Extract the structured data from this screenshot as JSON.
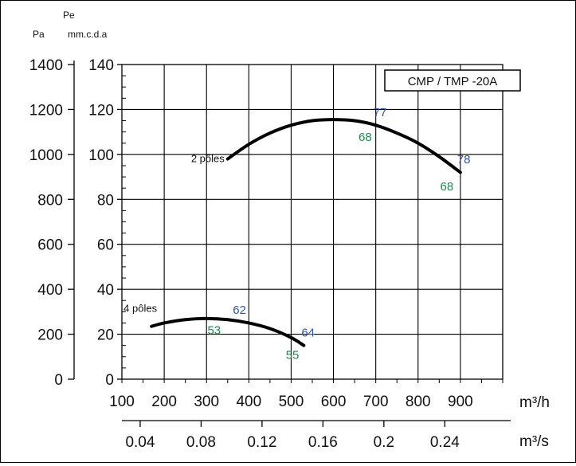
{
  "chart_data": {
    "type": "line",
    "title": "CMP / TMP -20A",
    "axes": {
      "y_left_outer": {
        "label_top": "",
        "label": "Pa",
        "ticks": [
          "1400",
          "1200",
          "1000",
          "800",
          "600",
          "400",
          "200",
          "0"
        ],
        "range": [
          0,
          1400
        ]
      },
      "y_left_inner": {
        "label_top": "Pe",
        "label": "mm.c.d.a",
        "ticks": [
          "140",
          "120",
          "100",
          "80",
          "60",
          "40",
          "20",
          "0"
        ],
        "range": [
          0,
          140
        ]
      },
      "x_bottom_1": {
        "unit": "m³/h",
        "ticks": [
          "100",
          "200",
          "300",
          "400",
          "500",
          "600",
          "700",
          "800",
          "900"
        ],
        "range": [
          100,
          1000
        ]
      },
      "x_bottom_2": {
        "unit": "m³/s",
        "ticks": [
          "0.04",
          "0.08",
          "0.12",
          "0.16",
          "0.2",
          "0.24"
        ],
        "range": [
          0.028,
          0.278
        ]
      }
    },
    "grid": true,
    "series": [
      {
        "name": "2 pôles",
        "x": [
          350,
          400,
          450,
          500,
          550,
          600,
          650,
          700,
          750,
          800,
          850,
          900
        ],
        "y": [
          98,
          104.5,
          109.5,
          113,
          115,
          115.5,
          115,
          113,
          109.5,
          105,
          99,
          92
        ]
      },
      {
        "name": "4 pôles",
        "x": [
          170,
          200,
          250,
          300,
          350,
          400,
          450,
          500,
          530
        ],
        "y": [
          23.5,
          25,
          26.5,
          27,
          26.5,
          25,
          22.5,
          18.5,
          15
        ]
      }
    ],
    "annotations": [
      {
        "text": "77",
        "color": "blue",
        "x": 710,
        "y": 117
      },
      {
        "text": "68",
        "color": "green",
        "x": 675,
        "y": 106
      },
      {
        "text": "78",
        "color": "blue",
        "x": 908,
        "y": 96
      },
      {
        "text": "68",
        "color": "green",
        "x": 868,
        "y": 84
      },
      {
        "text": "62",
        "color": "blue",
        "x": 378,
        "y": 29
      },
      {
        "text": "53",
        "color": "green",
        "x": 318,
        "y": 20
      },
      {
        "text": "64",
        "color": "blue",
        "x": 540,
        "y": 19
      },
      {
        "text": "55",
        "color": "green",
        "x": 503,
        "y": 9
      }
    ]
  }
}
